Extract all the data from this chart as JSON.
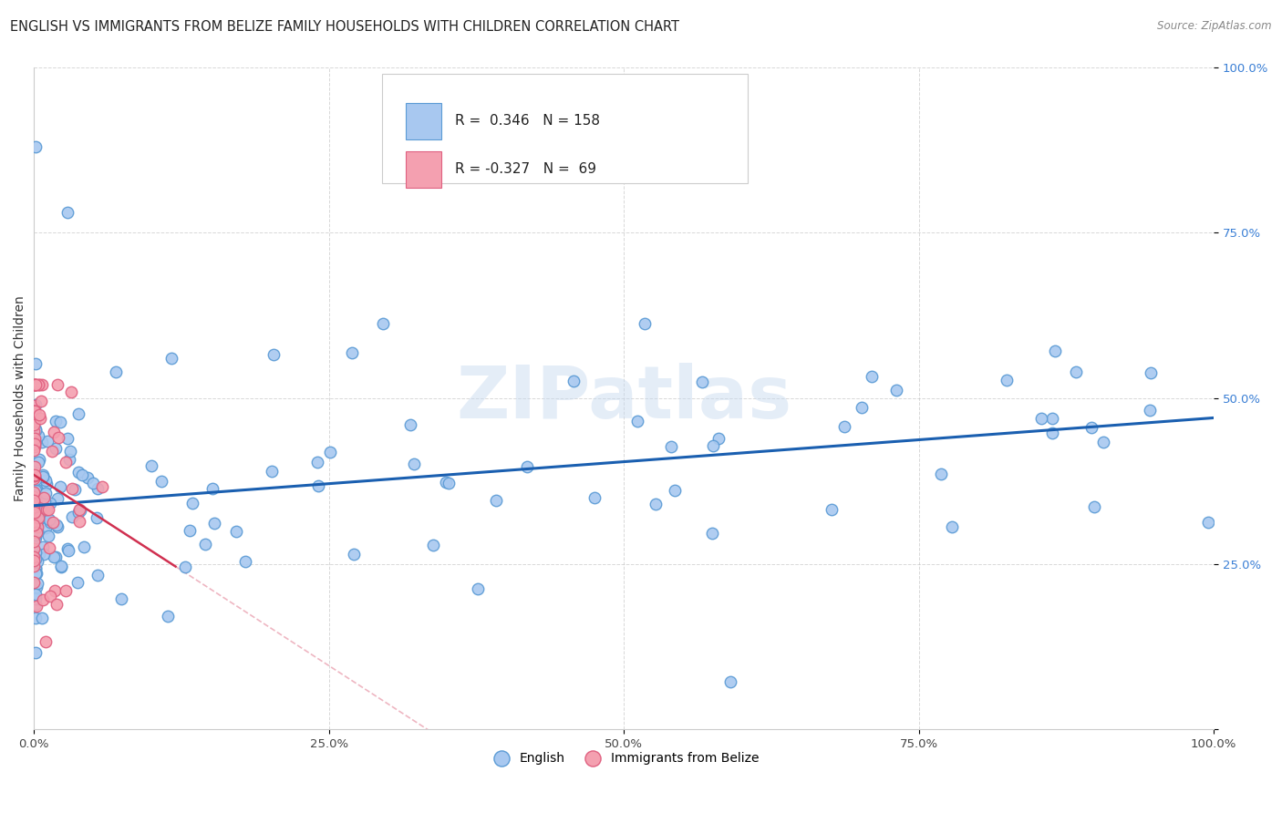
{
  "title": "ENGLISH VS IMMIGRANTS FROM BELIZE FAMILY HOUSEHOLDS WITH CHILDREN CORRELATION CHART",
  "source": "Source: ZipAtlas.com",
  "ylabel": "Family Households with Children",
  "watermark": "ZIPatlas",
  "xlim": [
    0.0,
    1.0
  ],
  "ylim": [
    0.0,
    1.0
  ],
  "xticks": [
    0.0,
    0.25,
    0.5,
    0.75,
    1.0
  ],
  "xtick_labels": [
    "0.0%",
    "25.0%",
    "50.0%",
    "75.0%",
    "100.0%"
  ],
  "yticks": [
    0.0,
    0.25,
    0.5,
    0.75,
    1.0
  ],
  "ytick_labels": [
    "",
    "25.0%",
    "50.0%",
    "75.0%",
    "100.0%"
  ],
  "english_color": "#a8c8f0",
  "english_edge_color": "#5b9bd5",
  "belize_color": "#f4a0b0",
  "belize_edge_color": "#e06080",
  "english_line_color": "#1a5fb0",
  "belize_line_color": "#d03050",
  "grid_color": "#b8b8b8",
  "background_color": "#ffffff",
  "r_english": 0.346,
  "n_english": 158,
  "r_belize": -0.327,
  "n_belize": 69,
  "legend_label_english": "English",
  "legend_label_belize": "Immigrants from Belize",
  "title_fontsize": 10.5,
  "axis_label_fontsize": 10,
  "tick_fontsize": 9.5,
  "marker_size": 9
}
